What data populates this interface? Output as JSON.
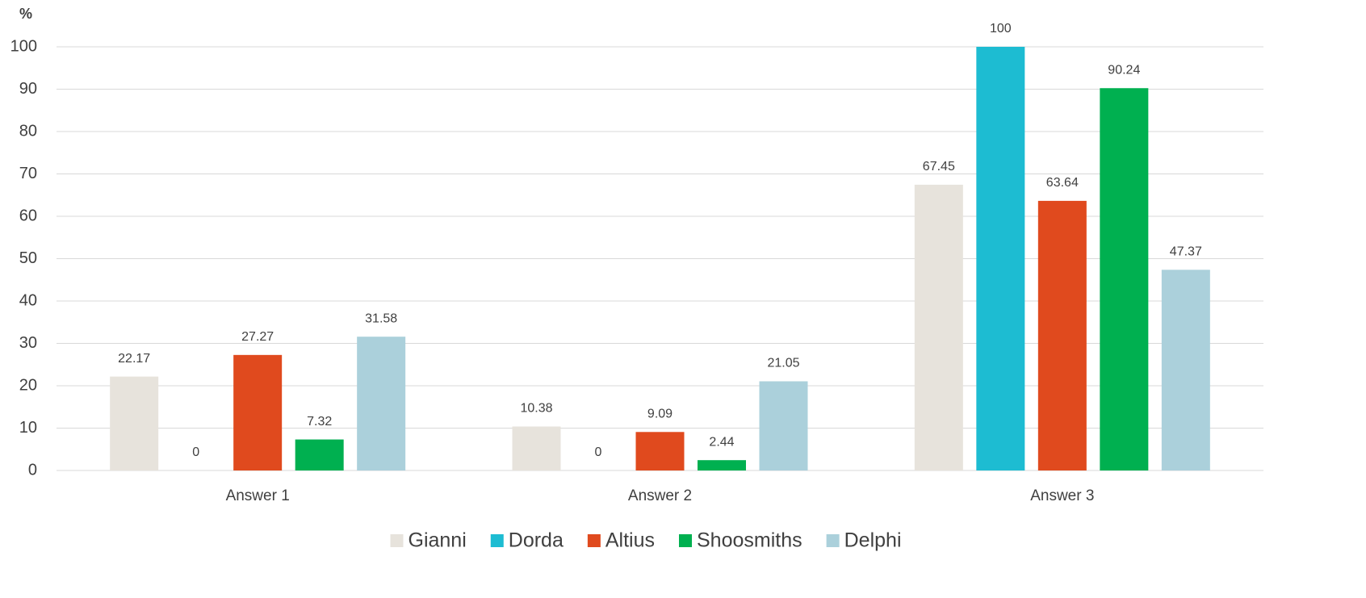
{
  "chart_data": {
    "type": "bar",
    "y_label": "%",
    "categories": [
      "Answer 1",
      "Answer 2",
      "Answer 3"
    ],
    "series": [
      {
        "name": "Gianni",
        "color": "#e7e3dc",
        "values": [
          22.17,
          10.38,
          67.45
        ]
      },
      {
        "name": "Dorda",
        "color": "#1dbcd2",
        "values": [
          0,
          0,
          100
        ]
      },
      {
        "name": "Altius",
        "color": "#e04a1e",
        "values": [
          27.27,
          9.09,
          63.64
        ]
      },
      {
        "name": "Shoosmiths",
        "color": "#00b050",
        "values": [
          7.32,
          2.44,
          90.24
        ]
      },
      {
        "name": "Delphi",
        "color": "#abd0db",
        "values": [
          31.58,
          21.05,
          47.37
        ]
      }
    ],
    "ylim": [
      0,
      100
    ],
    "yticks": [
      0,
      10,
      20,
      30,
      40,
      50,
      60,
      70,
      80,
      90,
      100
    ],
    "grid": true,
    "legend": "bottom"
  }
}
